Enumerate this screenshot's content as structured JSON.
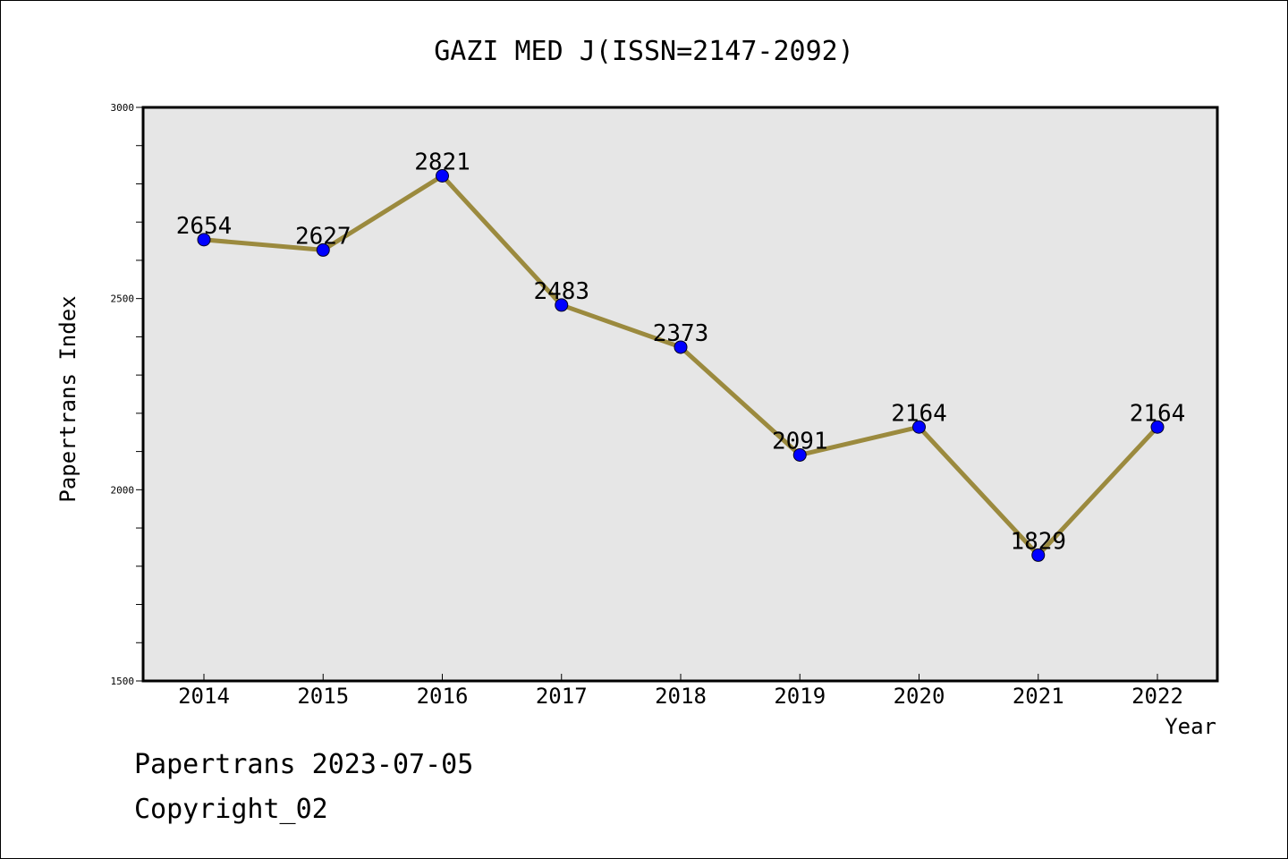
{
  "chart_data": {
    "type": "line",
    "title": "GAZI MED J(ISSN=2147-2092)",
    "xlabel": "Year",
    "ylabel": "Papertrans Index",
    "x": [
      "2014",
      "2015",
      "2016",
      "2017",
      "2018",
      "2019",
      "2020",
      "2021",
      "2022"
    ],
    "series": [
      {
        "values": [
          2654,
          2627,
          2821,
          2483,
          2373,
          2091,
          2164,
          1829,
          2164
        ]
      }
    ],
    "ylim": [
      1500,
      3000
    ],
    "y_ticks": [
      "1500",
      "2000",
      "2500",
      "3000"
    ],
    "data_labels": [
      "2654",
      "2627",
      "2821",
      "2483",
      "2373",
      "2091",
      "2164",
      "1829",
      "2164"
    ],
    "grid": false,
    "plot_background": "#e6e6e6",
    "line_color": "#9b8a3e",
    "marker_color": "#0000ff"
  },
  "footer": {
    "line1": "Papertrans 2023-07-05",
    "line2": "Copyright_02"
  }
}
